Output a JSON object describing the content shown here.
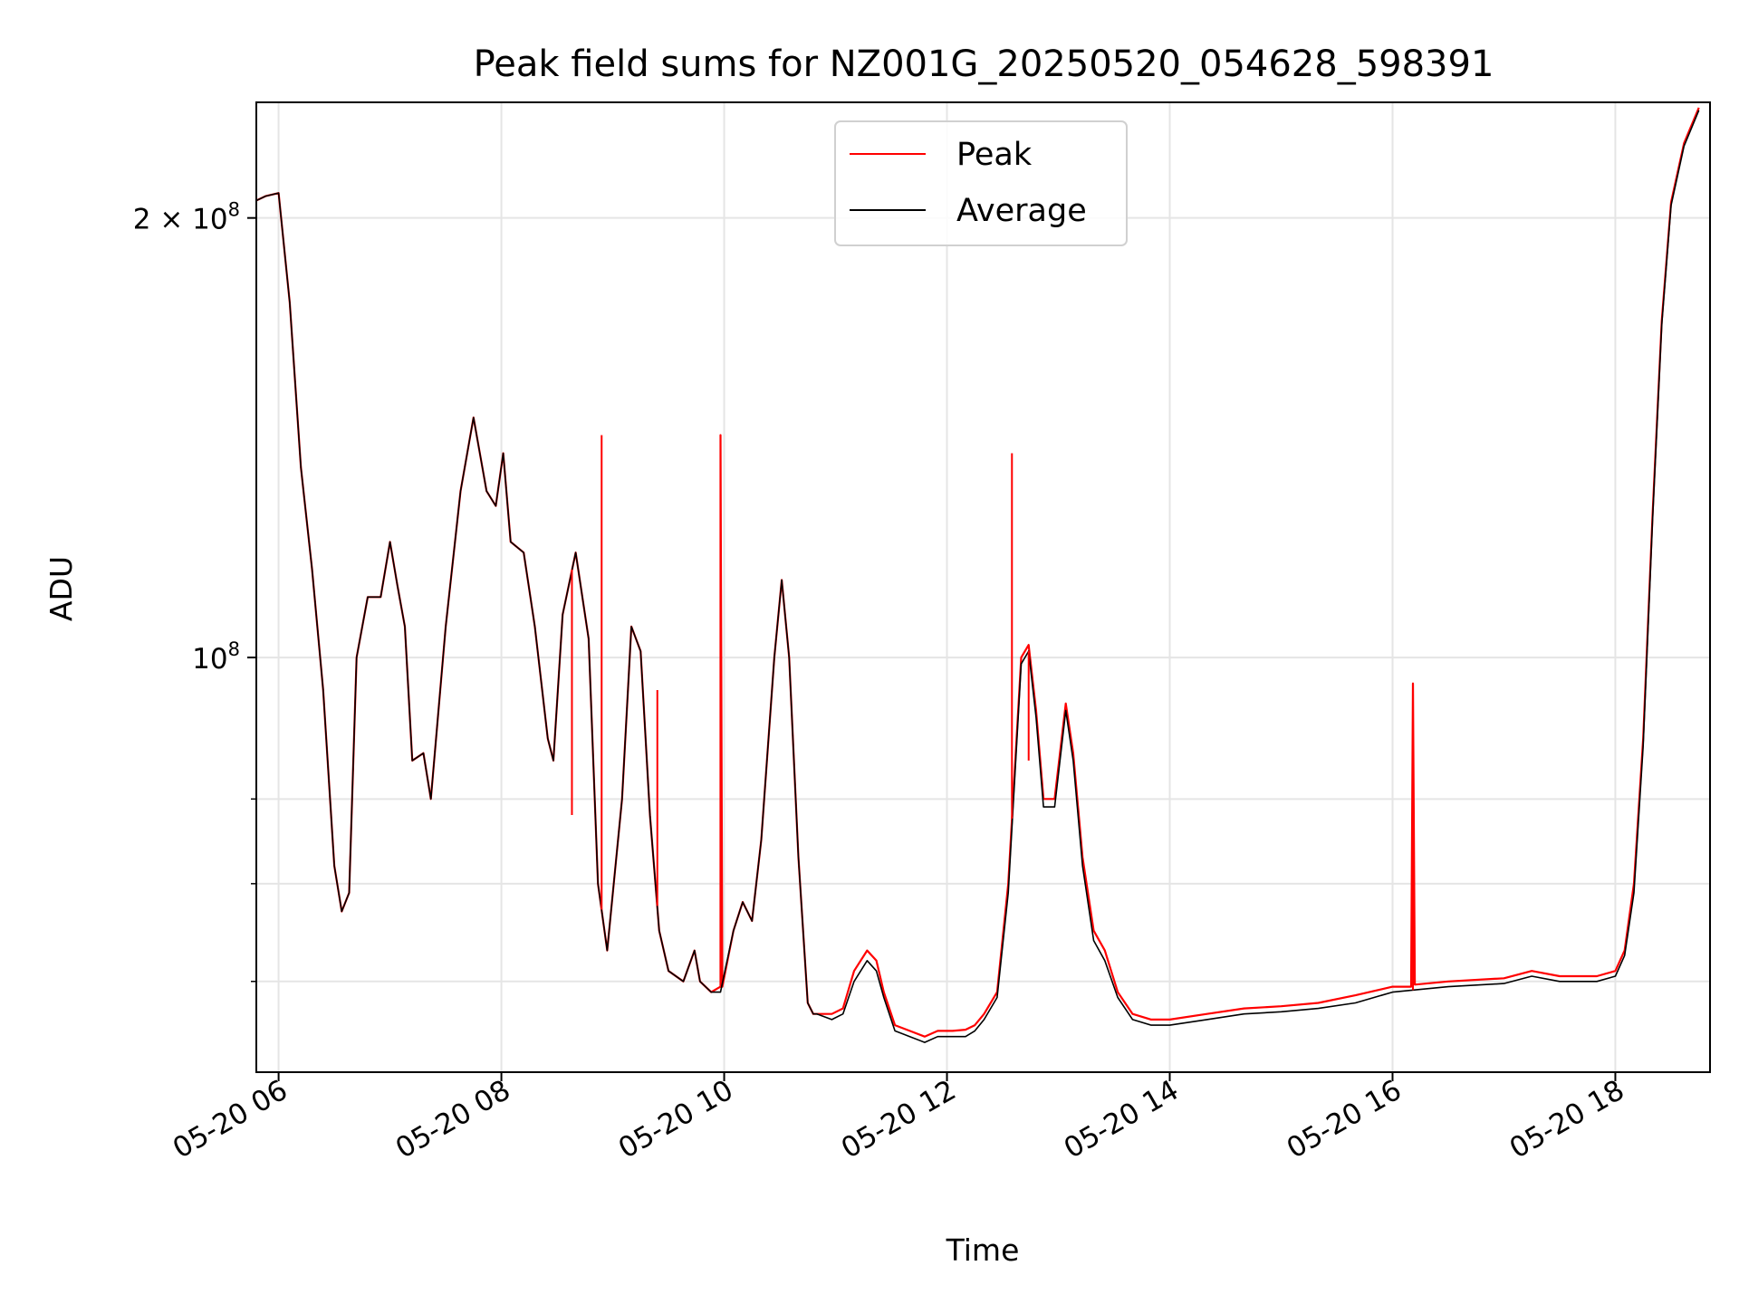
{
  "chart_data": {
    "type": "line",
    "title": "Peak field sums for NZ001G_20250520_054628_598391",
    "xlabel": "Time",
    "ylabel": "ADU",
    "x_ticks": [
      "05-20 06",
      "05-20 08",
      "05-20 10",
      "05-20 12",
      "05-20 14",
      "05-20 16",
      "05-20 18"
    ],
    "y_ticks": [
      {
        "value": 200000000,
        "label_main": "2 × 10",
        "label_exp": "8"
      },
      {
        "value": 100000000,
        "label_main": "10",
        "label_exp": "8"
      }
    ],
    "y_scale": "log",
    "xlim": [
      "2025-05-20 05:48",
      "2025-05-20 18:51"
    ],
    "ylim": [
      52000000,
      240000000
    ],
    "grid": true,
    "legend_position": "upper center",
    "colors": {
      "peak": "#ff0000",
      "average": "#000000",
      "grid": "#e5e5e5"
    },
    "series": [
      {
        "name": "Peak",
        "points": [
          [
            "2025-05-20 05:46",
            205000000.0
          ],
          [
            "2025-05-20 05:53",
            207000000.0
          ],
          [
            "2025-05-20 06:00",
            208000000.0
          ],
          [
            "2025-05-20 06:06",
            175000000.0
          ],
          [
            "2025-05-20 06:12",
            135000000.0
          ],
          [
            "2025-05-20 06:18",
            115000000.0
          ],
          [
            "2025-05-20 06:24",
            95000000.0
          ],
          [
            "2025-05-20 06:30",
            72000000.0
          ],
          [
            "2025-05-20 06:34",
            67000000.0
          ],
          [
            "2025-05-20 06:38",
            69000000.0
          ],
          [
            "2025-05-20 06:42",
            100000000.0
          ],
          [
            "2025-05-20 06:48",
            110000000.0
          ],
          [
            "2025-05-20 06:55",
            110000000.0
          ],
          [
            "2025-05-20 07:00",
            120000000.0
          ],
          [
            "2025-05-20 07:04",
            112000000.0
          ],
          [
            "2025-05-20 07:08",
            105000000.0
          ],
          [
            "2025-05-20 07:12",
            85000000.0
          ],
          [
            "2025-05-20 07:18",
            86000000.0
          ],
          [
            "2025-05-20 07:22",
            80000000.0
          ],
          [
            "2025-05-20 07:30",
            105000000.0
          ],
          [
            "2025-05-20 07:38",
            130000000.0
          ],
          [
            "2025-05-20 07:45",
            146000000.0
          ],
          [
            "2025-05-20 07:52",
            130000000.0
          ],
          [
            "2025-05-20 07:57",
            127000000.0
          ],
          [
            "2025-05-20 08:01",
            138000000.0
          ],
          [
            "2025-05-20 08:05",
            120000000.0
          ],
          [
            "2025-05-20 08:12",
            118000000.0
          ],
          [
            "2025-05-20 08:18",
            105000000.0
          ],
          [
            "2025-05-20 08:25",
            88000000.0
          ],
          [
            "2025-05-20 08:28",
            85000000.0
          ],
          [
            "2025-05-20 08:33",
            107000000.0
          ],
          [
            "2025-05-20 08:40",
            118000000.0
          ],
          [
            "2025-05-20 08:47",
            103000000.0
          ],
          [
            "2025-05-20 08:52",
            70000000.0
          ],
          [
            "2025-05-20 08:57",
            63000000.0
          ],
          [
            "2025-05-20 09:05",
            80000000.0
          ],
          [
            "2025-05-20 09:10",
            105000000.0
          ],
          [
            "2025-05-20 09:15",
            101000000.0
          ],
          [
            "2025-05-20 09:20",
            78000000.0
          ],
          [
            "2025-05-20 09:25",
            65000000.0
          ],
          [
            "2025-05-20 09:30",
            61000000.0
          ],
          [
            "2025-05-20 09:38",
            60000000.0
          ],
          [
            "2025-05-20 09:44",
            63000000.0
          ],
          [
            "2025-05-20 09:47",
            60000000.0
          ],
          [
            "2025-05-20 09:53",
            59000000.0
          ],
          [
            "2025-05-20 09:58",
            59500000.0
          ],
          [
            "2025-05-20 09:58",
            142000000.0
          ],
          [
            "2025-05-20 09:59",
            59500000.0
          ],
          [
            "2025-05-20 10:05",
            65000000.0
          ],
          [
            "2025-05-20 10:10",
            68000000.0
          ],
          [
            "2025-05-20 10:15",
            66000000.0
          ],
          [
            "2025-05-20 10:20",
            75000000.0
          ],
          [
            "2025-05-20 10:27",
            100000000.0
          ],
          [
            "2025-05-20 10:31",
            113000000.0
          ],
          [
            "2025-05-20 10:35",
            100000000.0
          ],
          [
            "2025-05-20 10:40",
            73000000.0
          ],
          [
            "2025-05-20 10:45",
            58000000.0
          ],
          [
            "2025-05-20 10:48",
            57000000.0
          ],
          [
            "2025-05-20 10:50",
            57000000.0
          ],
          [
            "2025-05-20 10:58",
            57000000.0
          ],
          [
            "2025-05-20 11:04",
            57500000.0
          ],
          [
            "2025-05-20 11:10",
            61000000.0
          ],
          [
            "2025-05-20 11:17",
            63000000.0
          ],
          [
            "2025-05-20 11:22",
            62000000.0
          ],
          [
            "2025-05-20 11:26",
            59000000.0
          ],
          [
            "2025-05-20 11:32",
            56000000.0
          ],
          [
            "2025-05-20 11:40",
            55500000.0
          ],
          [
            "2025-05-20 11:48",
            55000000.0
          ],
          [
            "2025-05-20 11:55",
            55500000.0
          ],
          [
            "2025-05-20 12:03",
            55500000.0
          ],
          [
            "2025-05-20 12:10",
            55600000.0
          ],
          [
            "2025-05-20 12:15",
            56000000.0
          ],
          [
            "2025-05-20 12:20",
            57000000.0
          ],
          [
            "2025-05-20 12:27",
            59000000.0
          ],
          [
            "2025-05-20 12:33",
            70000000.0
          ],
          [
            "2025-05-20 12:40",
            100000000.0
          ],
          [
            "2025-05-20 12:44",
            102000000.0
          ],
          [
            "2025-05-20 12:48",
            92000000.0
          ],
          [
            "2025-05-20 12:52",
            80000000.0
          ],
          [
            "2025-05-20 12:58",
            80000000.0
          ],
          [
            "2025-05-20 13:04",
            93000000.0
          ],
          [
            "2025-05-20 13:08",
            86000000.0
          ],
          [
            "2025-05-20 13:13",
            73000000.0
          ],
          [
            "2025-05-20 13:19",
            65000000.0
          ],
          [
            "2025-05-20 13:25",
            63000000.0
          ],
          [
            "2025-05-20 13:32",
            59000000.0
          ],
          [
            "2025-05-20 13:40",
            57000000.0
          ],
          [
            "2025-05-20 13:50",
            56500000.0
          ],
          [
            "2025-05-20 14:00",
            56500000.0
          ],
          [
            "2025-05-20 14:20",
            57000000.0
          ],
          [
            "2025-05-20 14:40",
            57500000.0
          ],
          [
            "2025-05-20 15:00",
            57700000.0
          ],
          [
            "2025-05-20 15:20",
            58000000.0
          ],
          [
            "2025-05-20 15:40",
            58700000.0
          ],
          [
            "2025-05-20 16:00",
            59500000.0
          ],
          [
            "2025-05-20 16:10",
            59500000.0
          ],
          [
            "2025-05-20 16:11",
            96000000.0
          ],
          [
            "2025-05-20 16:12",
            59700000.0
          ],
          [
            "2025-05-20 16:30",
            60000000.0
          ],
          [
            "2025-05-20 17:00",
            60300000.0
          ],
          [
            "2025-05-20 17:15",
            61000000.0
          ],
          [
            "2025-05-20 17:30",
            60500000.0
          ],
          [
            "2025-05-20 17:50",
            60500000.0
          ],
          [
            "2025-05-20 18:00",
            61000000.0
          ],
          [
            "2025-05-20 18:05",
            63000000.0
          ],
          [
            "2025-05-20 18:10",
            70000000.0
          ],
          [
            "2025-05-20 18:15",
            88000000.0
          ],
          [
            "2025-05-20 18:20",
            125000000.0
          ],
          [
            "2025-05-20 18:25",
            170000000.0
          ],
          [
            "2025-05-20 18:30",
            205000000.0
          ],
          [
            "2025-05-20 18:37",
            225000000.0
          ],
          [
            "2025-05-20 18:45",
            238000000.0
          ]
        ]
      },
      {
        "name": "Average",
        "points": [
          [
            "2025-05-20 05:46",
            205000000.0
          ],
          [
            "2025-05-20 05:53",
            207000000.0
          ],
          [
            "2025-05-20 06:00",
            208000000.0
          ],
          [
            "2025-05-20 06:06",
            175000000.0
          ],
          [
            "2025-05-20 06:12",
            135000000.0
          ],
          [
            "2025-05-20 06:18",
            115000000.0
          ],
          [
            "2025-05-20 06:24",
            95000000.0
          ],
          [
            "2025-05-20 06:30",
            72000000.0
          ],
          [
            "2025-05-20 06:34",
            67000000.0
          ],
          [
            "2025-05-20 06:38",
            69000000.0
          ],
          [
            "2025-05-20 06:42",
            100000000.0
          ],
          [
            "2025-05-20 06:48",
            110000000.0
          ],
          [
            "2025-05-20 06:55",
            110000000.0
          ],
          [
            "2025-05-20 07:00",
            120000000.0
          ],
          [
            "2025-05-20 07:04",
            112000000.0
          ],
          [
            "2025-05-20 07:08",
            105000000.0
          ],
          [
            "2025-05-20 07:12",
            85000000.0
          ],
          [
            "2025-05-20 07:18",
            86000000.0
          ],
          [
            "2025-05-20 07:22",
            80000000.0
          ],
          [
            "2025-05-20 07:30",
            105000000.0
          ],
          [
            "2025-05-20 07:38",
            130000000.0
          ],
          [
            "2025-05-20 07:45",
            146000000.0
          ],
          [
            "2025-05-20 07:52",
            130000000.0
          ],
          [
            "2025-05-20 07:57",
            127000000.0
          ],
          [
            "2025-05-20 08:01",
            138000000.0
          ],
          [
            "2025-05-20 08:05",
            120000000.0
          ],
          [
            "2025-05-20 08:12",
            118000000.0
          ],
          [
            "2025-05-20 08:18",
            105000000.0
          ],
          [
            "2025-05-20 08:25",
            88000000.0
          ],
          [
            "2025-05-20 08:28",
            85000000.0
          ],
          [
            "2025-05-20 08:33",
            107000000.0
          ],
          [
            "2025-05-20 08:40",
            118000000.0
          ],
          [
            "2025-05-20 08:47",
            103000000.0
          ],
          [
            "2025-05-20 08:52",
            70000000.0
          ],
          [
            "2025-05-20 08:57",
            63000000.0
          ],
          [
            "2025-05-20 09:05",
            80000000.0
          ],
          [
            "2025-05-20 09:10",
            105000000.0
          ],
          [
            "2025-05-20 09:15",
            101000000.0
          ],
          [
            "2025-05-20 09:20",
            78000000.0
          ],
          [
            "2025-05-20 09:25",
            65000000.0
          ],
          [
            "2025-05-20 09:30",
            61000000.0
          ],
          [
            "2025-05-20 09:38",
            60000000.0
          ],
          [
            "2025-05-20 09:44",
            63000000.0
          ],
          [
            "2025-05-20 09:47",
            60000000.0
          ],
          [
            "2025-05-20 09:53",
            59000000.0
          ],
          [
            "2025-05-20 09:58",
            59000000.0
          ],
          [
            "2025-05-20 10:05",
            65000000.0
          ],
          [
            "2025-05-20 10:10",
            68000000.0
          ],
          [
            "2025-05-20 10:15",
            66000000.0
          ],
          [
            "2025-05-20 10:20",
            75000000.0
          ],
          [
            "2025-05-20 10:27",
            100000000.0
          ],
          [
            "2025-05-20 10:31",
            113000000.0
          ],
          [
            "2025-05-20 10:35",
            100000000.0
          ],
          [
            "2025-05-20 10:40",
            73000000.0
          ],
          [
            "2025-05-20 10:45",
            58000000.0
          ],
          [
            "2025-05-20 10:48",
            57000000.0
          ],
          [
            "2025-05-20 10:50",
            57000000.0
          ],
          [
            "2025-05-20 10:58",
            56500000.0
          ],
          [
            "2025-05-20 11:04",
            57000000.0
          ],
          [
            "2025-05-20 11:10",
            60000000.0
          ],
          [
            "2025-05-20 11:17",
            62000000.0
          ],
          [
            "2025-05-20 11:22",
            61000000.0
          ],
          [
            "2025-05-20 11:26",
            58500000.0
          ],
          [
            "2025-05-20 11:32",
            55500000.0
          ],
          [
            "2025-05-20 11:40",
            55000000.0
          ],
          [
            "2025-05-20 11:48",
            54500000.0
          ],
          [
            "2025-05-20 11:55",
            55000000.0
          ],
          [
            "2025-05-20 12:03",
            55000000.0
          ],
          [
            "2025-05-20 12:10",
            55000000.0
          ],
          [
            "2025-05-20 12:15",
            55500000.0
          ],
          [
            "2025-05-20 12:20",
            56500000.0
          ],
          [
            "2025-05-20 12:27",
            58500000.0
          ],
          [
            "2025-05-20 12:33",
            69000000.0
          ],
          [
            "2025-05-20 12:40",
            99000000.0
          ],
          [
            "2025-05-20 12:44",
            101000000.0
          ],
          [
            "2025-05-20 12:48",
            91000000.0
          ],
          [
            "2025-05-20 12:52",
            79000000.0
          ],
          [
            "2025-05-20 12:58",
            79000000.0
          ],
          [
            "2025-05-20 13:04",
            92000000.0
          ],
          [
            "2025-05-20 13:08",
            85000000.0
          ],
          [
            "2025-05-20 13:13",
            72000000.0
          ],
          [
            "2025-05-20 13:19",
            64000000.0
          ],
          [
            "2025-05-20 13:25",
            62000000.0
          ],
          [
            "2025-05-20 13:32",
            58500000.0
          ],
          [
            "2025-05-20 13:40",
            56500000.0
          ],
          [
            "2025-05-20 13:50",
            56000000.0
          ],
          [
            "2025-05-20 14:00",
            56000000.0
          ],
          [
            "2025-05-20 14:20",
            56500000.0
          ],
          [
            "2025-05-20 14:40",
            57000000.0
          ],
          [
            "2025-05-20 15:00",
            57200000.0
          ],
          [
            "2025-05-20 15:20",
            57500000.0
          ],
          [
            "2025-05-20 15:40",
            58000000.0
          ],
          [
            "2025-05-20 16:00",
            59000000.0
          ],
          [
            "2025-05-20 16:30",
            59500000.0
          ],
          [
            "2025-05-20 17:00",
            59800000.0
          ],
          [
            "2025-05-20 17:15",
            60500000.0
          ],
          [
            "2025-05-20 17:30",
            60000000.0
          ],
          [
            "2025-05-20 17:50",
            60000000.0
          ],
          [
            "2025-05-20 18:00",
            60500000.0
          ],
          [
            "2025-05-20 18:05",
            62500000.0
          ],
          [
            "2025-05-20 18:10",
            69000000.0
          ],
          [
            "2025-05-20 18:15",
            87000000.0
          ],
          [
            "2025-05-20 18:20",
            124000000.0
          ],
          [
            "2025-05-20 18:25",
            169000000.0
          ],
          [
            "2025-05-20 18:30",
            204000000.0
          ],
          [
            "2025-05-20 18:37",
            224000000.0
          ],
          [
            "2025-05-20 18:45",
            237000000.0
          ]
        ]
      }
    ],
    "peak_spikes": [
      [
        "2025-05-20 08:38",
        78000000.0
      ],
      [
        "2025-05-20 08:54",
        142000000.0
      ],
      [
        "2025-05-20 09:24",
        95000000.0
      ],
      [
        "2025-05-20 12:35",
        138000000.0
      ],
      [
        "2025-05-20 12:44",
        85000000.0
      ],
      [
        "2025-05-20 16:11",
        96000000.0
      ]
    ]
  }
}
